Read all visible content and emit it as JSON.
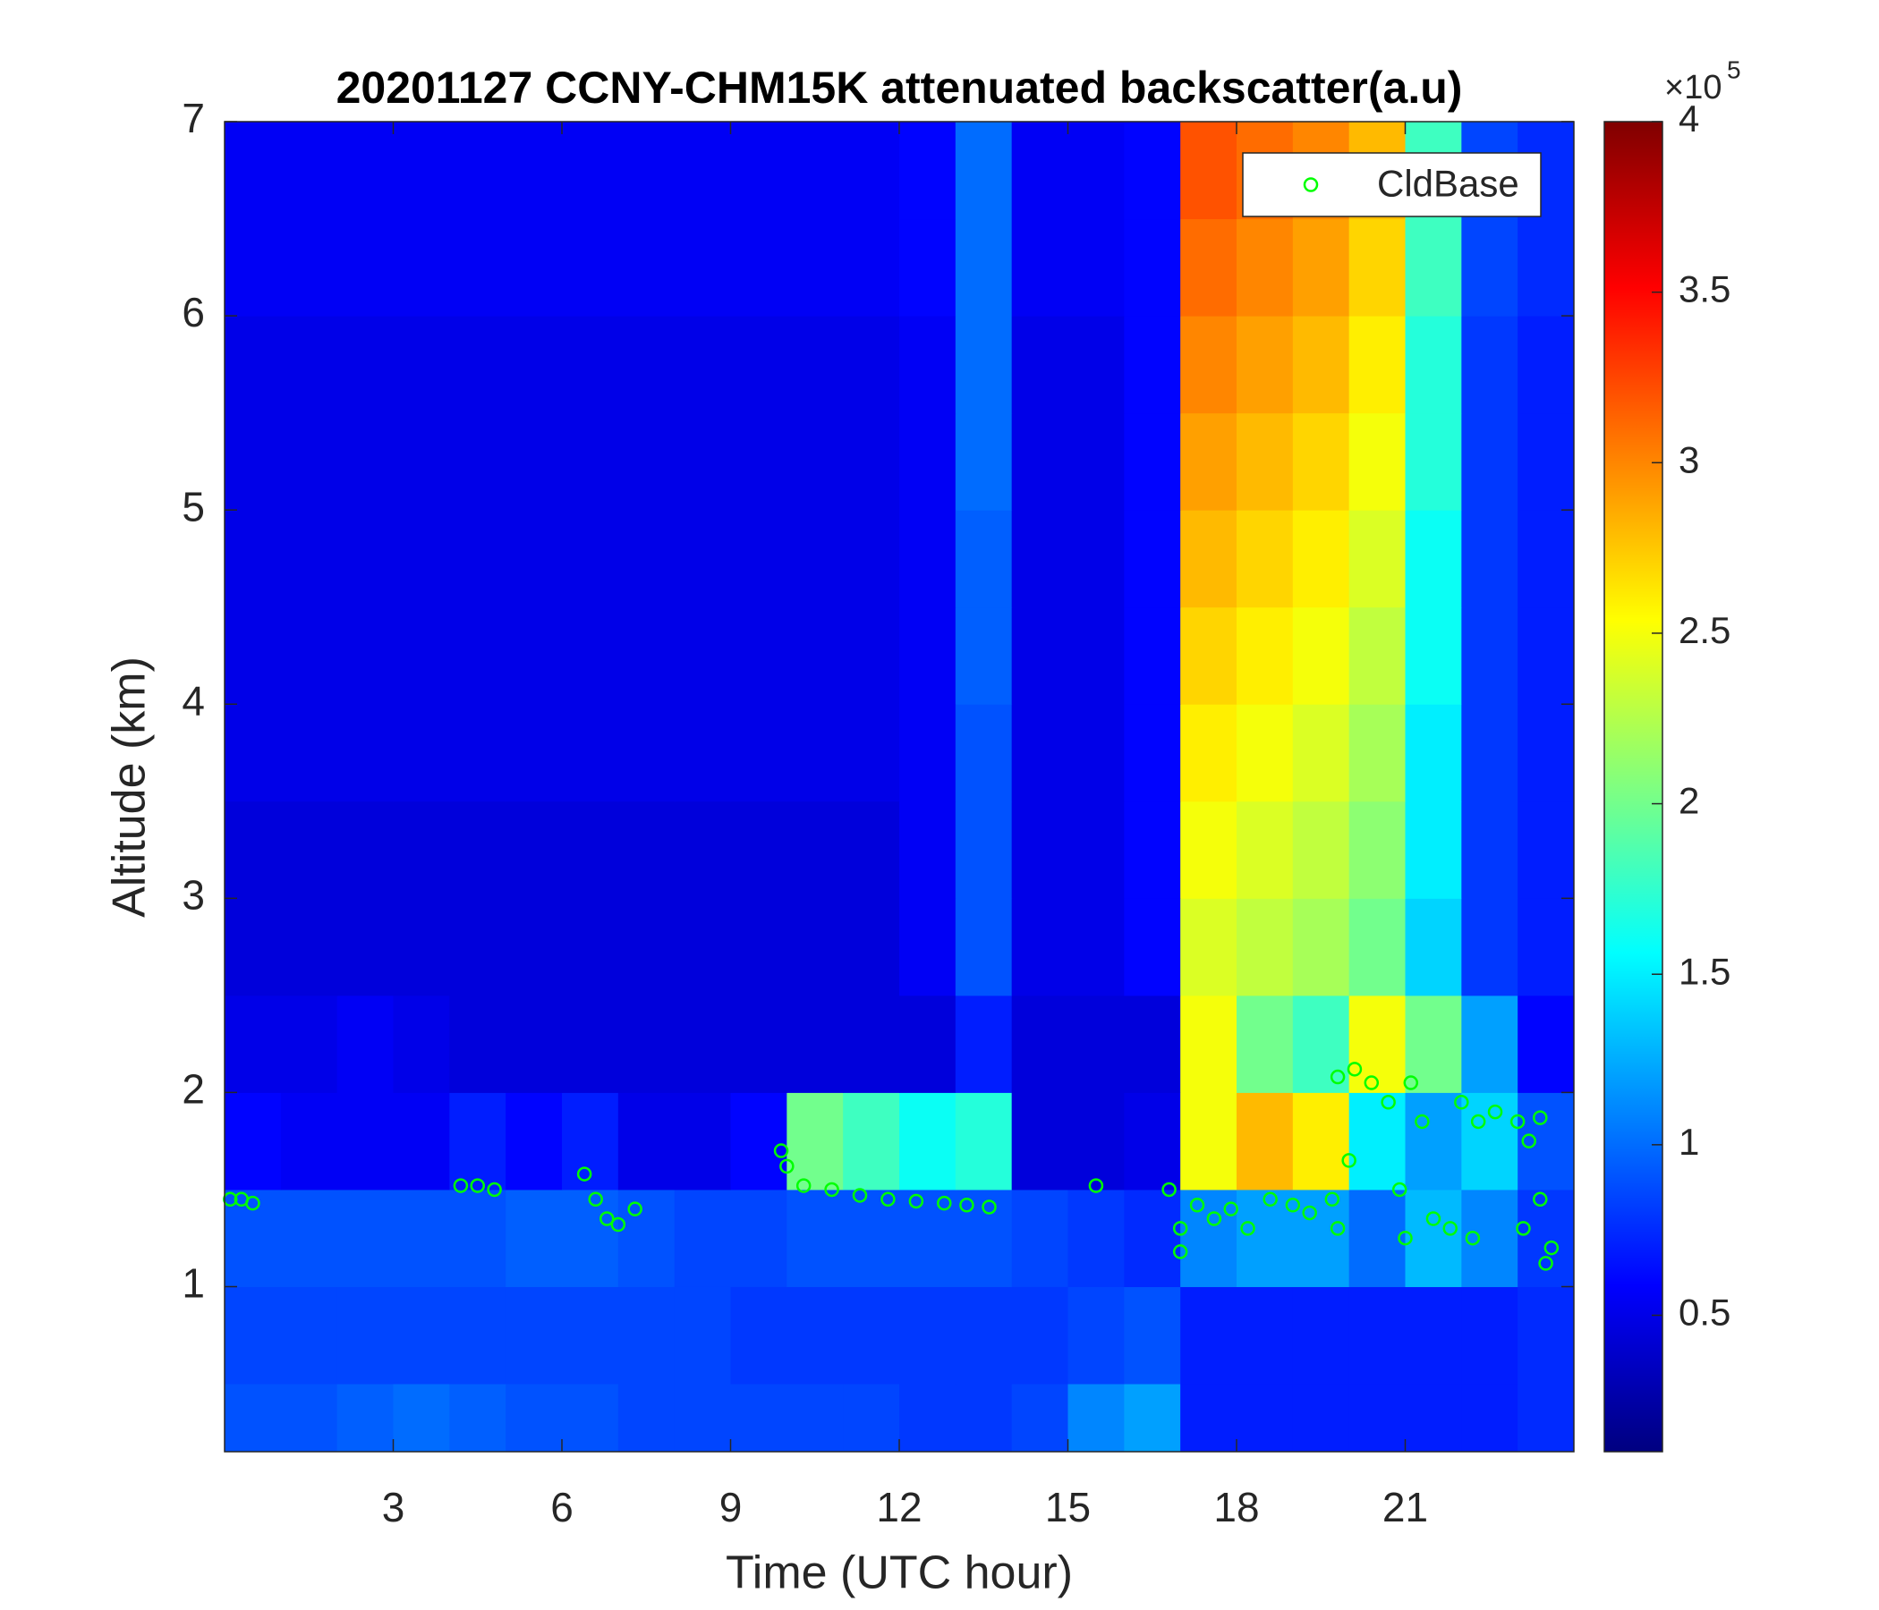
{
  "chart_data": {
    "type": "heatmap",
    "title": "20201127 CCNY-CHM15K attenuated backscatter(a.u)",
    "x_label": "Time (UTC hour)",
    "y_label": "Altitude (km)",
    "xlim": [
      0,
      24
    ],
    "ylim": [
      0.15,
      7
    ],
    "xticks": [
      3,
      6,
      9,
      12,
      15,
      18,
      21
    ],
    "yticks": [
      1,
      2,
      3,
      4,
      5,
      6,
      7
    ],
    "xbins": [
      0,
      1,
      2,
      3,
      4,
      5,
      6,
      7,
      8,
      9,
      10,
      11,
      12,
      13,
      14,
      15,
      16,
      17,
      18,
      19,
      20,
      21,
      22,
      23,
      24
    ],
    "ybins": [
      0.15,
      0.5,
      1,
      1.5,
      2,
      2.5,
      3,
      3.5,
      4,
      4.5,
      5,
      5.5,
      6,
      6.5,
      7
    ],
    "colorscale": "jet",
    "clim": [
      10000,
      400000
    ],
    "colorbar_ticks": [
      {
        "value": 50000,
        "label": "0.5"
      },
      {
        "value": 100000,
        "label": "1"
      },
      {
        "value": 150000,
        "label": "1.5"
      },
      {
        "value": 200000,
        "label": "2"
      },
      {
        "value": 250000,
        "label": "2.5"
      },
      {
        "value": 300000,
        "label": "3"
      },
      {
        "value": 350000,
        "label": "3.5"
      },
      {
        "value": 400000,
        "label": "4"
      }
    ],
    "colorbar_multiplier": "×10",
    "colorbar_exponent": "5",
    "z": [
      [
        90000,
        90000,
        95000,
        100000,
        95000,
        90000,
        90000,
        85000,
        85000,
        85000,
        85000,
        85000,
        80000,
        80000,
        85000,
        110000,
        120000,
        70000,
        70000,
        70000,
        70000,
        70000,
        70000,
        75000
      ],
      [
        85000,
        85000,
        85000,
        85000,
        85000,
        85000,
        85000,
        85000,
        85000,
        80000,
        80000,
        80000,
        80000,
        80000,
        80000,
        85000,
        90000,
        70000,
        70000,
        70000,
        70000,
        70000,
        70000,
        75000
      ],
      [
        90000,
        90000,
        90000,
        90000,
        90000,
        95000,
        95000,
        90000,
        85000,
        85000,
        90000,
        90000,
        90000,
        90000,
        85000,
        80000,
        75000,
        110000,
        120000,
        120000,
        100000,
        130000,
        110000,
        80000
      ],
      [
        60000,
        55000,
        55000,
        55000,
        70000,
        60000,
        70000,
        50000,
        50000,
        60000,
        200000,
        180000,
        160000,
        170000,
        45000,
        45000,
        50000,
        250000,
        280000,
        260000,
        150000,
        120000,
        140000,
        90000
      ],
      [
        50000,
        50000,
        55000,
        50000,
        45000,
        45000,
        45000,
        45000,
        45000,
        45000,
        45000,
        45000,
        45000,
        70000,
        45000,
        45000,
        45000,
        250000,
        200000,
        180000,
        250000,
        200000,
        120000,
        60000
      ],
      [
        45000,
        45000,
        45000,
        45000,
        45000,
        45000,
        45000,
        45000,
        45000,
        45000,
        45000,
        45000,
        55000,
        90000,
        50000,
        50000,
        60000,
        240000,
        230000,
        220000,
        200000,
        140000,
        80000,
        70000
      ],
      [
        45000,
        45000,
        45000,
        45000,
        45000,
        45000,
        45000,
        45000,
        45000,
        45000,
        45000,
        45000,
        55000,
        90000,
        50000,
        50000,
        60000,
        250000,
        240000,
        230000,
        210000,
        150000,
        80000,
        70000
      ],
      [
        50000,
        50000,
        50000,
        50000,
        50000,
        50000,
        50000,
        50000,
        50000,
        50000,
        50000,
        50000,
        55000,
        90000,
        50000,
        50000,
        60000,
        260000,
        250000,
        240000,
        220000,
        150000,
        80000,
        70000
      ],
      [
        50000,
        50000,
        50000,
        50000,
        50000,
        50000,
        50000,
        50000,
        50000,
        50000,
        50000,
        50000,
        55000,
        95000,
        50000,
        50000,
        60000,
        270000,
        260000,
        250000,
        230000,
        160000,
        80000,
        70000
      ],
      [
        50000,
        50000,
        50000,
        50000,
        50000,
        50000,
        50000,
        50000,
        50000,
        50000,
        50000,
        50000,
        55000,
        95000,
        50000,
        50000,
        60000,
        280000,
        270000,
        260000,
        240000,
        160000,
        80000,
        70000
      ],
      [
        50000,
        50000,
        50000,
        50000,
        50000,
        50000,
        50000,
        50000,
        50000,
        50000,
        50000,
        50000,
        55000,
        100000,
        50000,
        50000,
        60000,
        290000,
        280000,
        270000,
        250000,
        170000,
        80000,
        70000
      ],
      [
        50000,
        50000,
        50000,
        50000,
        50000,
        50000,
        50000,
        50000,
        50000,
        50000,
        50000,
        50000,
        55000,
        100000,
        50000,
        50000,
        60000,
        300000,
        290000,
        280000,
        260000,
        170000,
        80000,
        70000
      ],
      [
        55000,
        55000,
        55000,
        55000,
        55000,
        55000,
        55000,
        55000,
        55000,
        55000,
        55000,
        55000,
        60000,
        100000,
        55000,
        55000,
        60000,
        310000,
        300000,
        290000,
        270000,
        180000,
        85000,
        75000
      ],
      [
        55000,
        55000,
        55000,
        55000,
        55000,
        55000,
        55000,
        55000,
        55000,
        55000,
        55000,
        55000,
        60000,
        100000,
        55000,
        55000,
        60000,
        320000,
        310000,
        300000,
        280000,
        180000,
        85000,
        75000
      ]
    ],
    "series": [
      {
        "name": "CldBase",
        "type": "scatter",
        "color": "#00ff00",
        "x": [
          0.1,
          0.3,
          0.5,
          4.2,
          4.5,
          4.8,
          6.4,
          6.6,
          6.8,
          7.0,
          7.3,
          9.9,
          10.0,
          10.3,
          10.8,
          11.3,
          11.8,
          12.3,
          12.8,
          13.2,
          13.6,
          15.5,
          16.8,
          17.0,
          17.0,
          17.3,
          17.6,
          17.9,
          18.2,
          18.6,
          19.0,
          19.3,
          19.7,
          19.8,
          20.0,
          19.8,
          20.1,
          20.4,
          20.7,
          20.9,
          21.0,
          21.1,
          21.3,
          21.5,
          21.8,
          22.0,
          22.2,
          22.3,
          22.6,
          23.0,
          23.2,
          23.4,
          23.5,
          23.6,
          23.1,
          23.4
        ],
        "y": [
          1.45,
          1.45,
          1.43,
          1.52,
          1.52,
          1.5,
          1.58,
          1.45,
          1.35,
          1.32,
          1.4,
          1.7,
          1.62,
          1.52,
          1.5,
          1.47,
          1.45,
          1.44,
          1.43,
          1.42,
          1.41,
          1.52,
          1.5,
          1.3,
          1.18,
          1.42,
          1.35,
          1.4,
          1.3,
          1.45,
          1.42,
          1.38,
          1.45,
          1.3,
          1.65,
          2.08,
          2.12,
          2.05,
          1.95,
          1.5,
          1.25,
          2.05,
          1.85,
          1.35,
          1.3,
          1.95,
          1.25,
          1.85,
          1.9,
          1.85,
          1.75,
          1.87,
          1.12,
          1.2,
          1.3,
          1.45
        ]
      }
    ],
    "legend_position": "upper right"
  }
}
